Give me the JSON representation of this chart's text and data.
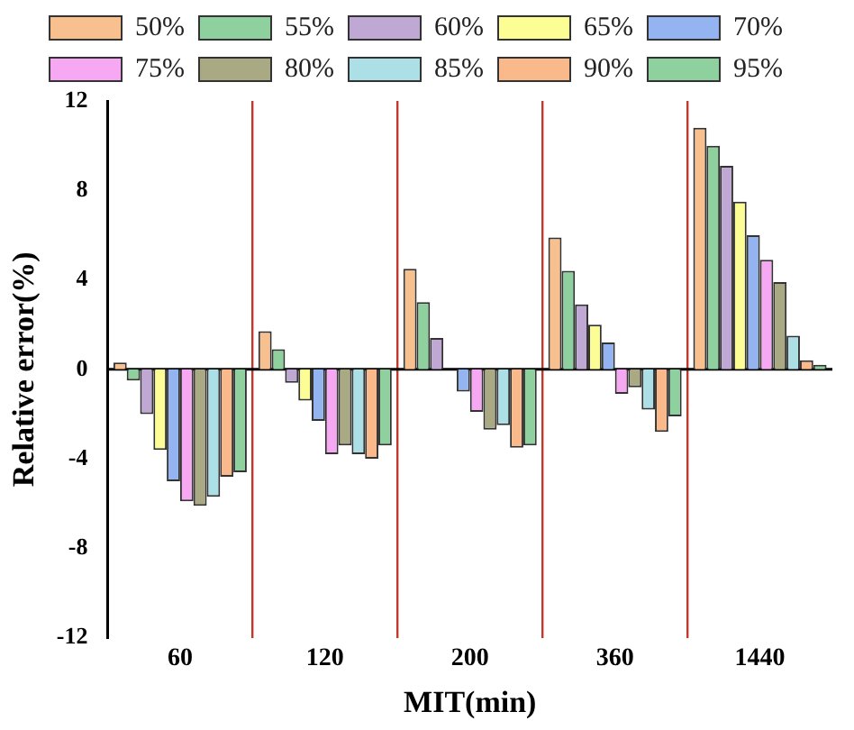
{
  "chart_data": {
    "type": "bar",
    "xlabel": "MIT(min)",
    "ylabel": "Relative error(%)",
    "categories": [
      "60",
      "120",
      "200",
      "360",
      "1440"
    ],
    "ylim": [
      -12,
      12
    ],
    "yticks": [
      -12,
      -8,
      -4,
      0,
      4,
      8,
      12
    ],
    "grid": "x",
    "legend": "top",
    "ref_lines": [
      {
        "axis": "y",
        "value": 0,
        "color": "#000000"
      }
    ],
    "series": [
      {
        "name": "50%",
        "color": "#f9c08f",
        "values": [
          0.3,
          1.7,
          4.5,
          5.9,
          10.8
        ]
      },
      {
        "name": "55%",
        "color": "#8fd19e",
        "values": [
          -0.5,
          0.9,
          3.0,
          4.4,
          10.0
        ]
      },
      {
        "name": "60%",
        "color": "#bfa9d4",
        "values": [
          -2.0,
          -0.6,
          1.4,
          2.9,
          9.1
        ]
      },
      {
        "name": "65%",
        "color": "#fdfd96",
        "values": [
          -3.6,
          -1.4,
          0,
          2.0,
          7.5
        ]
      },
      {
        "name": "70%",
        "color": "#93b4f0",
        "values": [
          -5.0,
          -2.3,
          -1.0,
          1.2,
          6.0
        ]
      },
      {
        "name": "75%",
        "color": "#f6a8f2",
        "values": [
          -5.9,
          -3.8,
          -1.9,
          -1.1,
          4.9
        ]
      },
      {
        "name": "80%",
        "color": "#a9a984",
        "values": [
          -6.1,
          -3.4,
          -2.7,
          -0.8,
          3.9
        ]
      },
      {
        "name": "85%",
        "color": "#ade0e6",
        "values": [
          -5.7,
          -3.8,
          -2.5,
          -1.8,
          1.5
        ]
      },
      {
        "name": "90%",
        "color": "#f9b98a",
        "values": [
          -4.8,
          -4.0,
          -3.5,
          -2.8,
          0.4
        ]
      },
      {
        "name": "95%",
        "color": "#8fd19e",
        "values": [
          -4.6,
          -3.4,
          -3.4,
          -2.1,
          0.2
        ]
      }
    ]
  }
}
